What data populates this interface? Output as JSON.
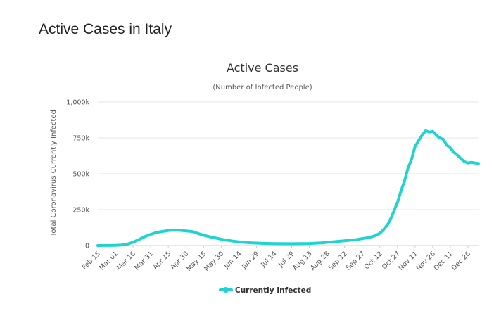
{
  "page": {
    "title": "Active Cases in Italy"
  },
  "chart_data": {
    "type": "line",
    "title": "Active Cases",
    "subtitle": "(Number of Infected People)",
    "xlabel": "",
    "ylabel": "Total Coronavirus Currently Infected",
    "ylim": [
      0,
      1000000
    ],
    "yticks": [
      {
        "value": 0,
        "label": "0"
      },
      {
        "value": 250000,
        "label": "250k"
      },
      {
        "value": 500000,
        "label": "500k"
      },
      {
        "value": 750000,
        "label": "750k"
      },
      {
        "value": 1000000,
        "label": "1,000k"
      }
    ],
    "xticks": [
      "Feb 15",
      "Mar 01",
      "Mar 16",
      "Mar 31",
      "Apr 15",
      "Apr 30",
      "May 15",
      "May 30",
      "Jun 14",
      "Jun 29",
      "Jul 14",
      "Jul 29",
      "Aug 13",
      "Aug 28",
      "Sep 12",
      "Sep 27",
      "Oct 12",
      "Oct 27",
      "Nov 11",
      "Nov 26",
      "Dec 11",
      "Dec 26"
    ],
    "grid": true,
    "legend_position": "bottom-center",
    "series": [
      {
        "name": "Currently Infected",
        "color": "#1fd3d3",
        "points": [
          [
            "Feb 15",
            0
          ],
          [
            "Mar 01",
            1000
          ],
          [
            "Mar 06",
            3500
          ],
          [
            "Mar 11",
            10000
          ],
          [
            "Mar 16",
            23000
          ],
          [
            "Mar 21",
            42000
          ],
          [
            "Mar 26",
            62000
          ],
          [
            "Mar 31",
            78000
          ],
          [
            "Apr 05",
            91000
          ],
          [
            "Apr 10",
            98000
          ],
          [
            "Apr 15",
            105000
          ],
          [
            "Apr 19",
            108000
          ],
          [
            "Apr 25",
            106000
          ],
          [
            "Apr 30",
            102000
          ],
          [
            "May 05",
            98000
          ],
          [
            "May 10",
            85000
          ],
          [
            "May 15",
            72000
          ],
          [
            "May 20",
            62000
          ],
          [
            "May 25",
            53000
          ],
          [
            "May 30",
            44000
          ],
          [
            "Jun 04",
            37000
          ],
          [
            "Jun 09",
            31000
          ],
          [
            "Jun 14",
            26000
          ],
          [
            "Jun 19",
            22000
          ],
          [
            "Jun 24",
            19000
          ],
          [
            "Jun 29",
            17000
          ],
          [
            "Jul 04",
            15000
          ],
          [
            "Jul 14",
            13000
          ],
          [
            "Jul 29",
            12500
          ],
          [
            "Aug 13",
            14000
          ],
          [
            "Aug 23",
            18000
          ],
          [
            "Aug 28",
            22000
          ],
          [
            "Sep 02",
            26000
          ],
          [
            "Sep 12",
            33000
          ],
          [
            "Sep 22",
            41000
          ],
          [
            "Sep 27",
            48000
          ],
          [
            "Oct 02",
            55000
          ],
          [
            "Oct 07",
            65000
          ],
          [
            "Oct 12",
            85000
          ],
          [
            "Oct 15",
            110000
          ],
          [
            "Oct 19",
            150000
          ],
          [
            "Oct 22",
            200000
          ],
          [
            "Oct 25",
            260000
          ],
          [
            "Oct 27",
            300000
          ],
          [
            "Oct 30",
            380000
          ],
          [
            "Nov 02",
            450000
          ],
          [
            "Nov 05",
            540000
          ],
          [
            "Nov 08",
            600000
          ],
          [
            "Nov 11",
            690000
          ],
          [
            "Nov 14",
            730000
          ],
          [
            "Nov 17",
            770000
          ],
          [
            "Nov 20",
            800000
          ],
          [
            "Nov 23",
            790000
          ],
          [
            "Nov 26",
            795000
          ],
          [
            "Nov 29",
            770000
          ],
          [
            "Dec 02",
            750000
          ],
          [
            "Dec 05",
            740000
          ],
          [
            "Dec 08",
            700000
          ],
          [
            "Dec 11",
            680000
          ],
          [
            "Dec 14",
            650000
          ],
          [
            "Dec 17",
            630000
          ],
          [
            "Dec 20",
            605000
          ],
          [
            "Dec 23",
            585000
          ],
          [
            "Dec 26",
            575000
          ],
          [
            "Dec 29",
            580000
          ],
          [
            "Jan 01",
            575000
          ],
          [
            "Jan 04",
            572000
          ]
        ]
      }
    ]
  }
}
